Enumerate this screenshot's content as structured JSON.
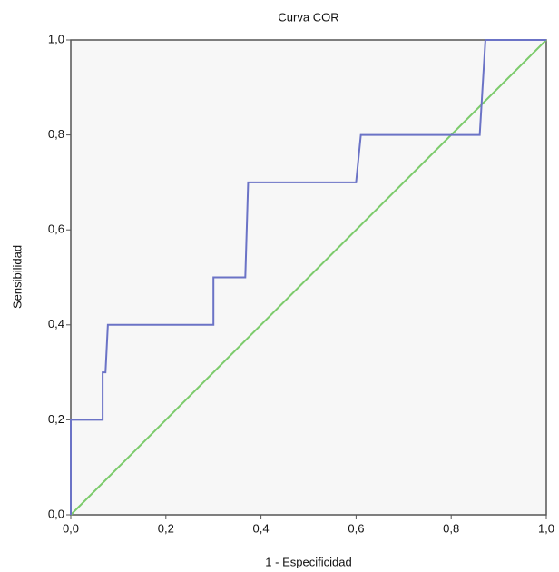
{
  "chart_data": {
    "type": "line",
    "title": "Curva COR",
    "x_label": "1 - Especificidad",
    "y_label": "Sensibilidad",
    "series": [
      {
        "color": "#6b73c6",
        "x": [
          0,
          0,
          0.067,
          0.067,
          0.073,
          0.078,
          0.3,
          0.3,
          0.367,
          0.373,
          0.6,
          0.61,
          0.86,
          0.872,
          1.0
        ],
        "values": [
          0,
          0.2,
          0.2,
          0.3,
          0.3,
          0.4,
          0.4,
          0.5,
          0.5,
          0.7,
          0.7,
          0.8,
          0.8,
          1.0,
          1.0
        ]
      },
      {
        "color": "#7ccb6c",
        "x": [
          0,
          1
        ],
        "values": [
          0,
          1
        ]
      }
    ],
    "xlim": [
      0,
      1
    ],
    "ylim": [
      0,
      1
    ],
    "xticks": [
      {
        "value": 0,
        "label": "0,0"
      },
      {
        "value": 0.2,
        "label": "0,2"
      },
      {
        "value": 0.4,
        "label": "0,4"
      },
      {
        "value": 0.6,
        "label": "0,6"
      },
      {
        "value": 0.8,
        "label": "0,8"
      },
      {
        "value": 1,
        "label": "1,0"
      }
    ],
    "yticks": [
      {
        "value": 0,
        "label": "0,0"
      },
      {
        "value": 0.2,
        "label": "0,2"
      },
      {
        "value": 0.4,
        "label": "0,4"
      },
      {
        "value": 0.6,
        "label": "0,6"
      },
      {
        "value": 0.8,
        "label": "0,8"
      },
      {
        "value": 1,
        "label": "1,0"
      }
    ],
    "plot_background": "#f7f7f7"
  }
}
